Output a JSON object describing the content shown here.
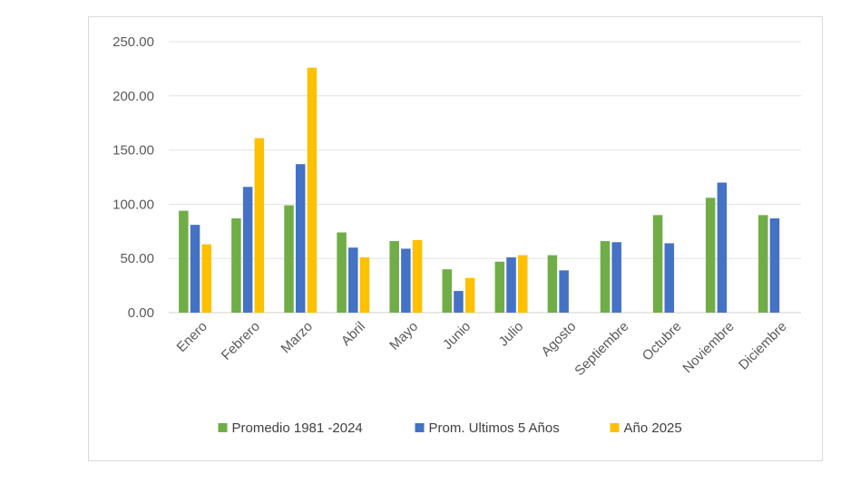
{
  "chart_data": {
    "type": "bar",
    "categories": [
      "Enero",
      "Febrero",
      "Marzo",
      "Abril",
      "Mayo",
      "Junio",
      "Julio",
      "Agosto",
      "Septiembre",
      "Octubre",
      "Noviembre",
      "Diciembre"
    ],
    "series": [
      {
        "name": "Promedio 1981 -2024",
        "color": "#70ad47",
        "values": [
          94,
          87,
          99,
          74,
          66,
          40,
          47,
          53,
          66,
          90,
          106,
          90
        ]
      },
      {
        "name": "Prom. Ultimos 5 Años",
        "color": "#4472c4",
        "values": [
          81,
          116,
          137,
          60,
          59,
          20,
          51,
          39,
          65,
          64,
          120,
          87
        ]
      },
      {
        "name": "Año 2025",
        "color": "#ffc000",
        "values": [
          63,
          161,
          226,
          51,
          67,
          32,
          53,
          null,
          null,
          null,
          null,
          null
        ]
      }
    ],
    "yticks": [
      "0.00",
      "50.00",
      "100.00",
      "150.00",
      "200.00",
      "250.00"
    ],
    "ylim": [
      0,
      250
    ],
    "grid": true,
    "legend_position": "bottom"
  }
}
